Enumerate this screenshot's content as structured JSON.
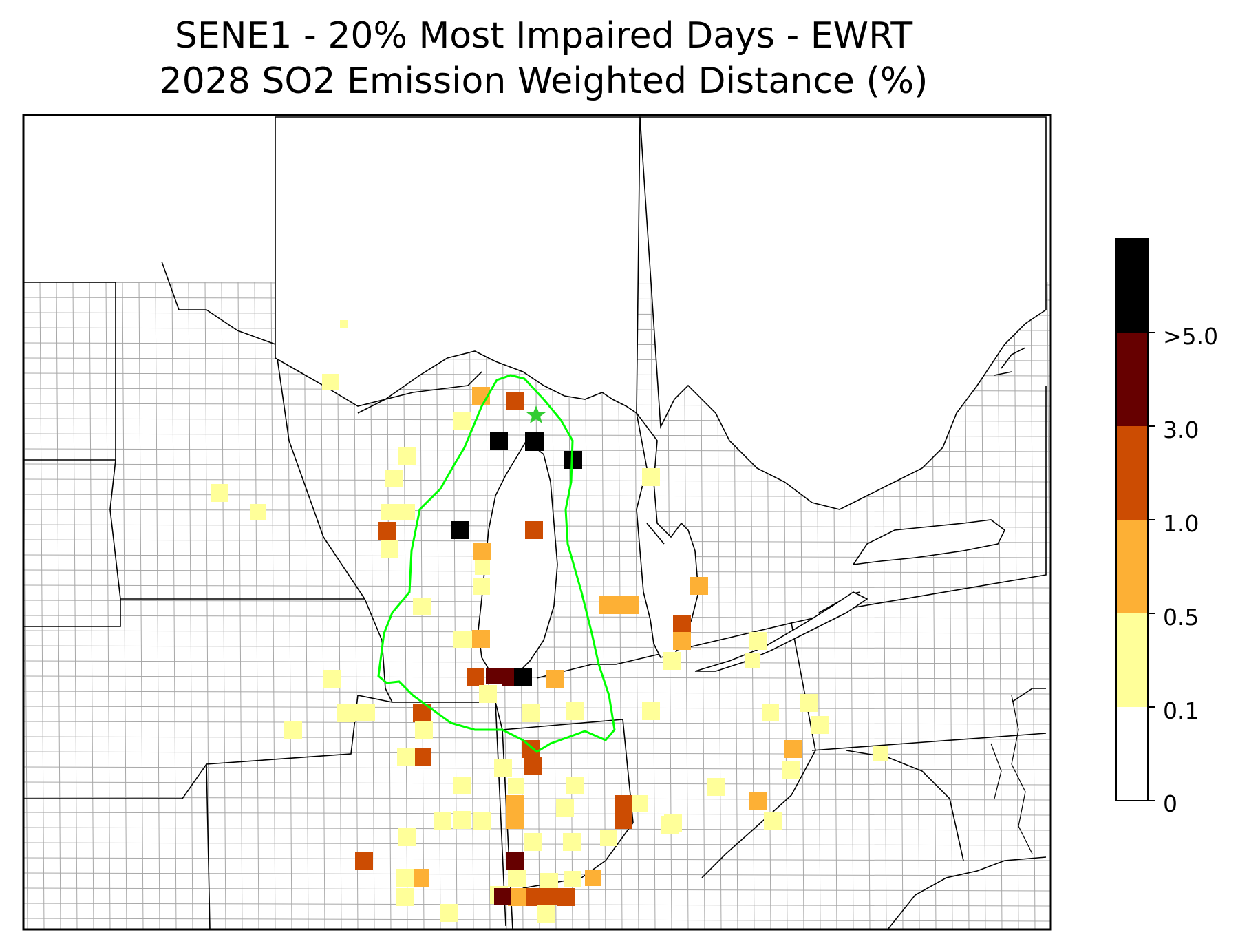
{
  "title": {
    "line1": "SENE1 - 20% Most Impaired Days - EWRT",
    "line2": "2028 SO2 Emission Weighted Distance (%)"
  },
  "colorbar": {
    "tick_labels": [
      "0",
      "0.1",
      "0.5",
      "1.0",
      "3.0",
      ">5.0"
    ],
    "bins": [
      {
        "range": "0-0.1",
        "color": "#ffffff"
      },
      {
        "range": "0.1-0.5",
        "color": "#ffff99"
      },
      {
        "range": "0.5-1.0",
        "color": "#fdb035"
      },
      {
        "range": "1.0-3.0",
        "color": "#cc4c02"
      },
      {
        "range": "3.0-5.0",
        "color": "#660000"
      },
      {
        "range": ">5.0",
        "color": "#000000"
      }
    ]
  },
  "site_marker": {
    "name": "SENE1",
    "symbol": "star",
    "color": "#33cc33"
  },
  "contour": {
    "color": "#00ff00"
  }
}
